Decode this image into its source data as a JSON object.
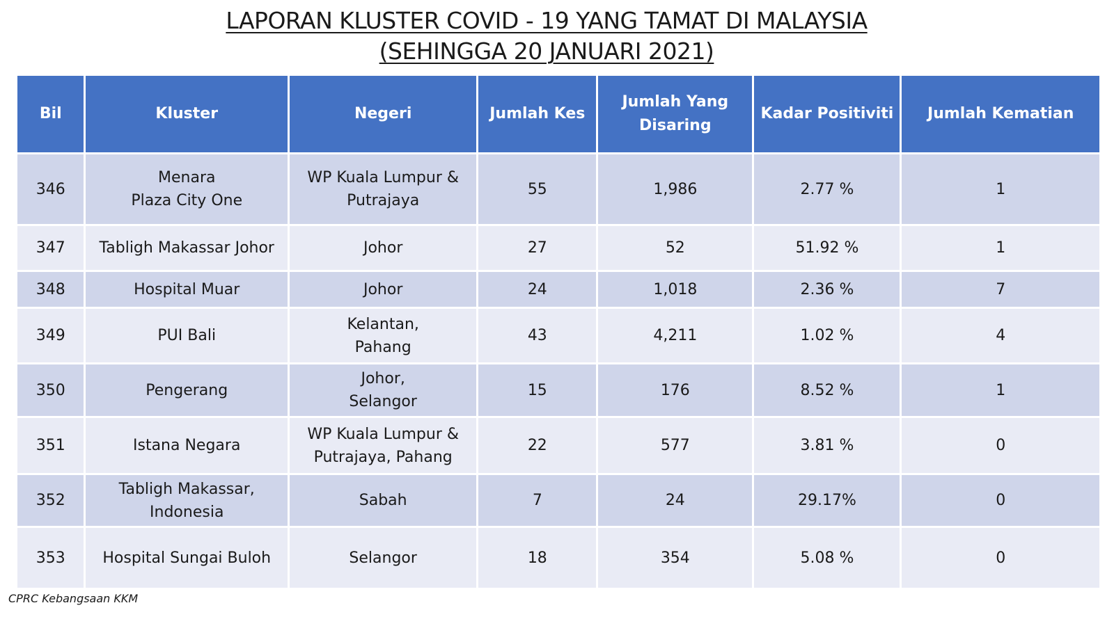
{
  "title": {
    "line1": "LAPORAN KLUSTER COVID - 19 YANG TAMAT DI MALAYSIA",
    "line2": "(SEHINGGA 20 JANUARI 2021)"
  },
  "table": {
    "headers": [
      "Bil",
      "Kluster",
      "Negeri",
      "Jumlah Kes",
      "Jumlah Yang\nDisaring",
      "Kadar Positiviti",
      "Jumlah Kematian"
    ],
    "rows": [
      [
        "346",
        "Menara\nPlaza City One",
        "WP Kuala Lumpur &\nPutrajaya",
        "55",
        "1,986",
        "2.77 %",
        "1"
      ],
      [
        "347",
        "Tabligh Makassar Johor",
        "Johor",
        "27",
        "52",
        "51.92 %",
        "1"
      ],
      [
        "348",
        "Hospital Muar",
        "Johor",
        "24",
        "1,018",
        "2.36 %",
        "7"
      ],
      [
        "349",
        "PUI Bali",
        "Kelantan,\nPahang",
        "43",
        "4,211",
        "1.02 %",
        "4"
      ],
      [
        "350",
        "Pengerang",
        "Johor,\nSelangor",
        "15",
        "176",
        "8.52 %",
        "1"
      ],
      [
        "351",
        "Istana Negara",
        "WP Kuala Lumpur &\nPutrajaya, Pahang",
        "22",
        "577",
        "3.81 %",
        "0"
      ],
      [
        "352",
        "Tabligh Makassar,\nIndonesia",
        "Sabah",
        "7",
        "24",
        "29.17%",
        "0"
      ],
      [
        "353",
        "Hospital Sungai Buloh",
        "Selangor",
        "18",
        "354",
        "5.08 %",
        "0"
      ]
    ]
  },
  "footer": "CPRC Kebangsaan KKM",
  "colors": {
    "header_bg": "#4472c4",
    "row_dark": "#cfd5ea",
    "row_light": "#e9ebf5"
  }
}
